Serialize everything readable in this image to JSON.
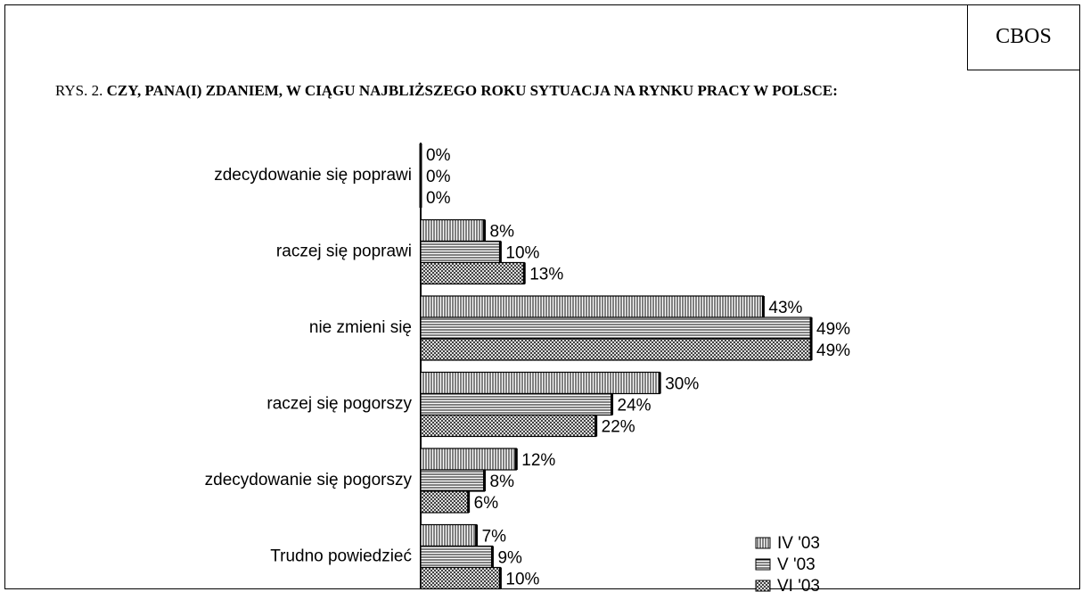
{
  "chart_data": {
    "type": "hbar",
    "source": "CBOS",
    "figure_label": "RYS. 2.",
    "title": "CZY, PANA(I) ZDANIEM, W CIĄGU NAJBLIŻSZEGO ROKU SYTUACJA NA RYNKU PRACY W POLSCE:",
    "categories": [
      "zdecydowanie się poprawi",
      "raczej się poprawi",
      "nie zmieni się",
      "raczej się pogorszy",
      "zdecydowanie się pogorszy",
      "Trudno powiedzieć"
    ],
    "series": [
      {
        "name": "IV '03",
        "pattern": "vertical",
        "values": [
          0,
          8,
          43,
          30,
          12,
          7
        ],
        "value_labels": [
          "0%",
          "8%",
          "43%",
          "30%",
          "12%",
          "7%"
        ]
      },
      {
        "name": "V '03",
        "pattern": "horizontal",
        "values": [
          0,
          10,
          49,
          24,
          8,
          9
        ],
        "value_labels": [
          "0%",
          "10%",
          "49%",
          "24%",
          "8%",
          "9%"
        ]
      },
      {
        "name": "VI '03",
        "pattern": "cross",
        "values": [
          0,
          13,
          49,
          22,
          6,
          10
        ],
        "value_labels": [
          "0%",
          "13%",
          "49%",
          "22%",
          "6%",
          "10%"
        ]
      }
    ],
    "xlim": [
      0,
      50
    ],
    "legend": "lower-right"
  }
}
